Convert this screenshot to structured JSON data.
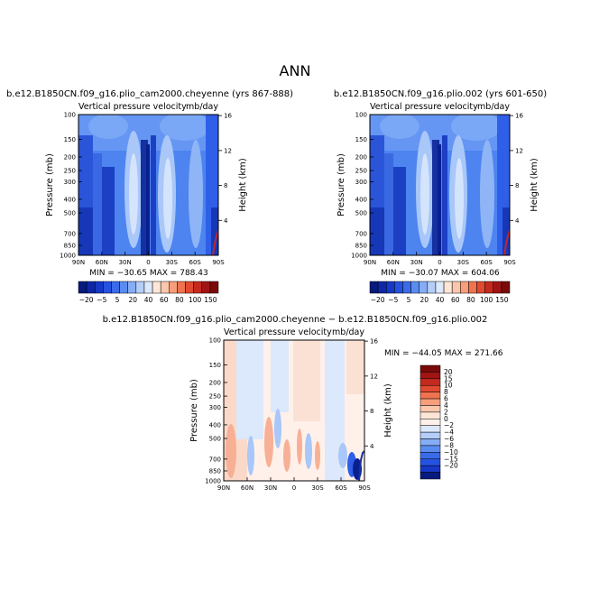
{
  "page_title": "ANN",
  "colors": {
    "blue_dark": "#0a1f8f",
    "blue_mid": "#2f5fe8",
    "blue_light": "#cfe0fb",
    "neutral": "#fff1ea",
    "orange": "#f7b096",
    "red_dark": "#8b0a0a"
  },
  "chart_data": [
    {
      "type": "contour",
      "title": "b.e12.B1850CN.f09_g16.plio_cam2000.cheyenne (yrs 867-888)",
      "subtitle_left": "Vertical pressure velocity",
      "subtitle_right": "mb/day",
      "ylabel": "Pressure (mb)",
      "ylabel_right": "Height (km)",
      "x_ticks": [
        "90N",
        "60N",
        "30N",
        "0",
        "30S",
        "60S",
        "90S"
      ],
      "y_ticks": [
        "100",
        "150",
        "200",
        "250",
        "300",
        "400",
        "500",
        "700",
        "850",
        "1000"
      ],
      "y_right_ticks": [
        "16",
        "12",
        "8",
        "4"
      ],
      "stats": "MIN = −30.65   MAX = 788.43",
      "colorbar_labels": [
        "−20",
        "−5",
        "5",
        "20",
        "40",
        "60",
        "80",
        "100",
        "150"
      ]
    },
    {
      "type": "contour",
      "title": "b.e12.B1850CN.f09_g16.plio.002 (yrs 601-650)",
      "subtitle_left": "Vertical pressure velocity",
      "subtitle_right": "mb/day",
      "ylabel": "Pressure (mb)",
      "ylabel_right": "Height (km)",
      "x_ticks": [
        "90N",
        "60N",
        "30N",
        "0",
        "30S",
        "60S",
        "90S"
      ],
      "y_ticks": [
        "100",
        "150",
        "200",
        "250",
        "300",
        "400",
        "500",
        "700",
        "850",
        "1000"
      ],
      "y_right_ticks": [
        "16",
        "12",
        "8",
        "4"
      ],
      "stats": "MIN = −30.07   MAX = 604.06",
      "colorbar_labels": [
        "−20",
        "−5",
        "5",
        "20",
        "40",
        "60",
        "80",
        "100",
        "150"
      ]
    },
    {
      "type": "contour",
      "title": "b.e12.B1850CN.f09_g16.plio_cam2000.cheyenne − b.e12.B1850CN.f09_g16.plio.002",
      "subtitle_left": "Vertical pressure velocity",
      "subtitle_right": "mb/day",
      "ylabel": "Pressure (mb)",
      "ylabel_right": "Height (km)",
      "x_ticks": [
        "90N",
        "60N",
        "30N",
        "0",
        "30S",
        "60S",
        "90S"
      ],
      "y_ticks": [
        "100",
        "150",
        "200",
        "250",
        "300",
        "400",
        "500",
        "700",
        "850",
        "1000"
      ],
      "y_right_ticks": [
        "16",
        "12",
        "8",
        "4"
      ],
      "stats": "MIN = −44.05   MAX = 271.66",
      "colorbar_labels": [
        "20",
        "15",
        "10",
        "8",
        "6",
        "4",
        "2",
        "0",
        "−2",
        "−4",
        "−6",
        "−8",
        "−10",
        "−15",
        "−20"
      ]
    }
  ]
}
